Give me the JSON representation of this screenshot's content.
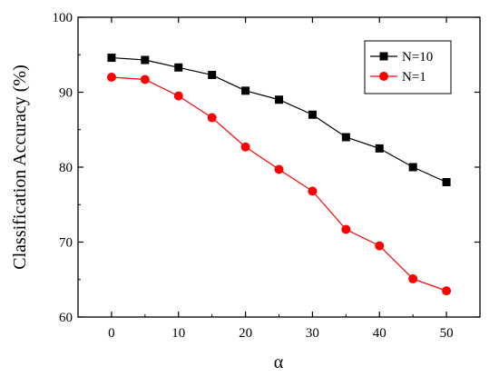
{
  "chart_data": {
    "type": "line",
    "title": "",
    "xlabel": "α",
    "ylabel": "Classification Accuracy (%)",
    "xlim": [
      -5,
      55
    ],
    "ylim": [
      60,
      100
    ],
    "xticks": [
      0,
      10,
      20,
      30,
      40,
      50
    ],
    "yticks": [
      60,
      70,
      80,
      90,
      100
    ],
    "x": [
      0,
      5,
      10,
      15,
      20,
      25,
      30,
      35,
      40,
      45,
      50
    ],
    "legend_position": "top-right",
    "grid": false,
    "series": [
      {
        "name": "N=10",
        "color": "#000000",
        "marker": "square",
        "values": [
          94.6,
          94.3,
          93.3,
          92.3,
          90.2,
          89.0,
          87.0,
          84.0,
          82.5,
          80.0,
          78.0
        ]
      },
      {
        "name": "N=1",
        "color": "#ff0000",
        "marker": "circle",
        "values": [
          92.0,
          91.7,
          89.5,
          86.6,
          82.7,
          79.7,
          76.8,
          71.7,
          69.5,
          65.1,
          63.5
        ]
      }
    ]
  }
}
